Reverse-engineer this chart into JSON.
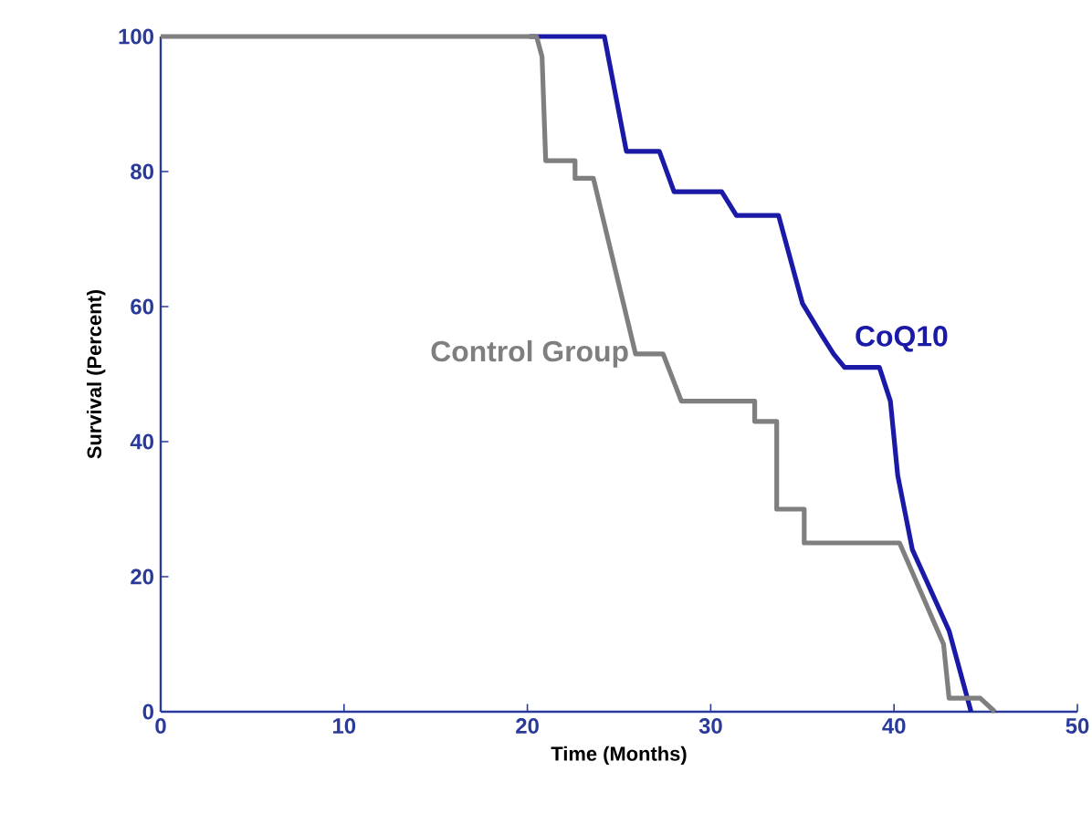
{
  "chart_data": {
    "type": "line",
    "xlabel": "Time (Months)",
    "ylabel": "Survival (Percent)",
    "xlim": [
      0,
      50
    ],
    "ylim": [
      0,
      100
    ],
    "xticks": [
      0,
      10,
      20,
      30,
      40,
      50
    ],
    "yticks": [
      0,
      20,
      40,
      60,
      80,
      100
    ],
    "grid": false,
    "legend": false,
    "marker": "none",
    "series": [
      {
        "name": "CoQ10",
        "color": "#1a1aa6",
        "x": [
          20.1,
          24.2,
          25.4,
          27.2,
          28.0,
          30.6,
          31.4,
          33.7,
          35.0,
          36.0,
          36.7,
          37.3,
          39.2,
          39.8,
          40.2,
          41.0,
          43.0,
          44.2
        ],
        "values": [
          100,
          100,
          83,
          83,
          77,
          77,
          73.5,
          73.5,
          60.5,
          56,
          53,
          51,
          51,
          46,
          35,
          24,
          12,
          0
        ]
      },
      {
        "name": "Control Group",
        "color": "#7f7f7f",
        "x": [
          0,
          20.5,
          20.8,
          21.0,
          22.6,
          22.6,
          23.6,
          25.9,
          27.4,
          28.4,
          32.4,
          32.4,
          33.6,
          33.6,
          35.1,
          35.1,
          40.3,
          42.7,
          43.0,
          44.7,
          45.5
        ],
        "values": [
          100,
          100,
          97,
          81.6,
          81.6,
          79,
          79,
          53,
          53,
          46,
          46,
          43,
          43,
          30,
          30,
          25,
          25,
          10,
          2,
          2,
          0
        ]
      }
    ]
  }
}
